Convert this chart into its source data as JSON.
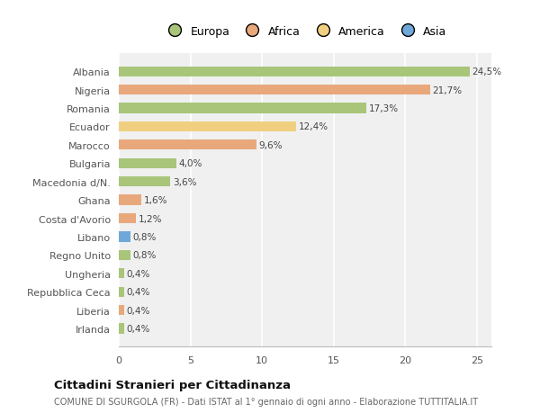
{
  "categories": [
    "Albania",
    "Nigeria",
    "Romania",
    "Ecuador",
    "Marocco",
    "Bulgaria",
    "Macedonia d/N.",
    "Ghana",
    "Costa d'Avorio",
    "Libano",
    "Regno Unito",
    "Ungheria",
    "Repubblica Ceca",
    "Liberia",
    "Irlanda"
  ],
  "values": [
    24.5,
    21.7,
    17.3,
    12.4,
    9.6,
    4.0,
    3.6,
    1.6,
    1.2,
    0.8,
    0.8,
    0.4,
    0.4,
    0.4,
    0.4
  ],
  "labels": [
    "24,5%",
    "21,7%",
    "17,3%",
    "12,4%",
    "9,6%",
    "4,0%",
    "3,6%",
    "1,6%",
    "1,2%",
    "0,8%",
    "0,8%",
    "0,4%",
    "0,4%",
    "0,4%",
    "0,4%"
  ],
  "colors": [
    "#a8c57a",
    "#e8a87c",
    "#a8c57a",
    "#f0d080",
    "#e8a87c",
    "#a8c57a",
    "#a8c57a",
    "#e8a87c",
    "#e8a87c",
    "#6fa8d8",
    "#a8c57a",
    "#a8c57a",
    "#a8c57a",
    "#e8a87c",
    "#a8c57a"
  ],
  "legend": [
    {
      "label": "Europa",
      "color": "#a8c57a"
    },
    {
      "label": "Africa",
      "color": "#e8a87c"
    },
    {
      "label": "America",
      "color": "#f0d080"
    },
    {
      "label": "Asia",
      "color": "#6fa8d8"
    }
  ],
  "xlim": [
    0,
    26
  ],
  "xticks": [
    0,
    5,
    10,
    15,
    20,
    25
  ],
  "title": "Cittadini Stranieri per Cittadinanza",
  "subtitle": "COMUNE DI SGURGOLA (FR) - Dati ISTAT al 1° gennaio di ogni anno - Elaborazione TUTTITALIA.IT",
  "bg_color": "#ffffff",
  "plot_bg_color": "#f0f0f0"
}
